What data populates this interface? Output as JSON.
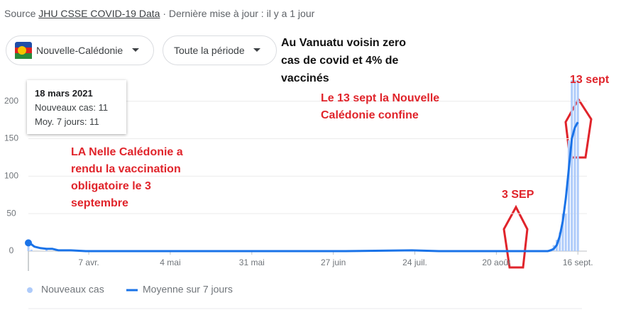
{
  "header": {
    "source_prefix": "Source",
    "source_link": "JHU CSSE COVID-19 Data",
    "updated": "· Dernière mise à jour : il y a 1 jour"
  },
  "controls": {
    "region": "Nouvelle-Calédonie",
    "period": "Toute la période"
  },
  "annotations": {
    "vanuatu": "Au Vanuatu voisin zero cas de covid et 4% de vaccinés",
    "lockdown": "Le 13 sept la Nouvelle Calédonie confine",
    "vaccination": "LA Nelle Calédonie a rendu la vaccination obligatoire le 3 septembre",
    "sep3": "3 SEP",
    "sep13": "13 sept"
  },
  "tooltip": {
    "date": "18 mars 2021",
    "new_cases": "Nouveaux cas: 11",
    "avg": "Moy. 7 jours: 11"
  },
  "chart_data": {
    "type": "bar_line",
    "x": [
      "2021-03-18",
      "2021-03-19",
      "2021-03-20",
      "2021-03-22",
      "2021-03-24",
      "2021-03-26",
      "2021-03-28",
      "2021-04-01",
      "2021-04-06",
      "2021-05-01",
      "2021-06-01",
      "2021-07-01",
      "2021-07-23",
      "2021-08-01",
      "2021-09-01",
      "2021-09-06",
      "2021-09-07",
      "2021-09-08",
      "2021-09-09",
      "2021-09-10",
      "2021-09-11",
      "2021-09-12",
      "2021-09-13",
      "2021-09-14",
      "2021-09-15",
      "2021-09-16"
    ],
    "series": [
      {
        "name": "Nouveaux cas",
        "color": "#aecbfa",
        "values": [
          11,
          2,
          0,
          0,
          3,
          0,
          0,
          0,
          0,
          0,
          0,
          0,
          0,
          0,
          0,
          0,
          3,
          8,
          15,
          25,
          50,
          50,
          148,
          228,
          228,
          228
        ]
      },
      {
        "name": "Moyenne sur 7 jours",
        "color": "#1a73e8",
        "values": [
          11,
          9,
          6,
          4,
          3,
          3,
          1,
          1,
          0,
          0,
          0,
          0,
          1,
          0,
          0,
          0,
          1,
          3,
          8,
          20,
          40,
          70,
          110,
          150,
          165,
          172
        ]
      }
    ],
    "xlim": [
      "2021-03-18",
      "2021-09-19"
    ],
    "xticks": [
      {
        "value": "2021-04-07",
        "label": "7 avr."
      },
      {
        "value": "2021-05-04",
        "label": "4 mai"
      },
      {
        "value": "2021-05-31",
        "label": "31 mai"
      },
      {
        "value": "2021-06-27",
        "label": "27 juin"
      },
      {
        "value": "2021-07-24",
        "label": "24 juil."
      },
      {
        "value": "2021-08-20",
        "label": "20 août"
      },
      {
        "value": "2021-09-16",
        "label": "16 sept."
      }
    ],
    "ylim": [
      0,
      230
    ],
    "yticks": [
      0,
      50,
      100,
      150,
      200
    ],
    "grid": true
  }
}
